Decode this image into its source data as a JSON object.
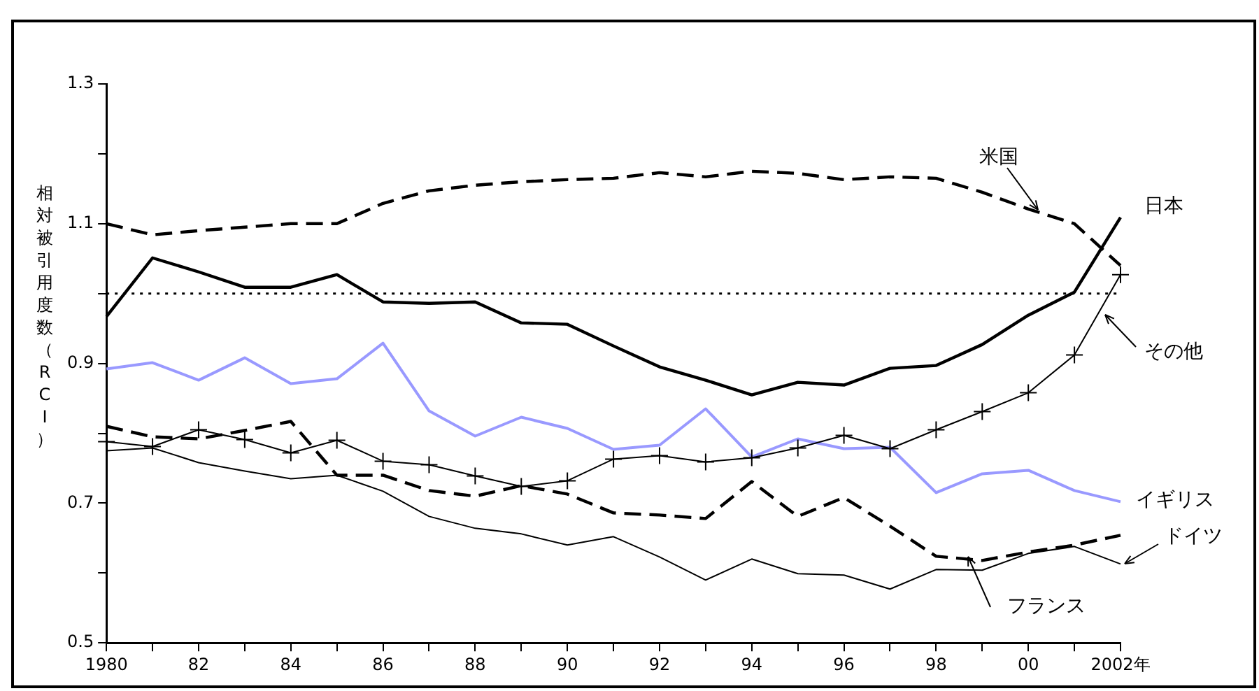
{
  "chart_data": {
    "type": "line",
    "ylabel": "相対被引用度数（RCI）",
    "x": [
      1980,
      1981,
      1982,
      1983,
      1984,
      1985,
      1986,
      1987,
      1988,
      1989,
      1990,
      1991,
      1992,
      1993,
      1994,
      1995,
      1996,
      1997,
      1998,
      1999,
      2000,
      2001,
      2002
    ],
    "series": [
      {
        "name": "米国",
        "color": "#000000",
        "line_style": "dashed",
        "marker": "none",
        "values": [
          1.1,
          1.084,
          1.09,
          1.095,
          1.1,
          1.1,
          1.129,
          1.147,
          1.155,
          1.16,
          1.163,
          1.165,
          1.173,
          1.167,
          1.175,
          1.172,
          1.163,
          1.167,
          1.165,
          1.145,
          1.121,
          1.1,
          1.04
        ]
      },
      {
        "name": "日本",
        "color": "#000000",
        "line_style": "solid",
        "marker": "none",
        "values": [
          0.967,
          1.051,
          1.031,
          1.009,
          1.009,
          1.027,
          0.988,
          0.986,
          0.988,
          0.958,
          0.956,
          0.925,
          0.895,
          0.876,
          0.855,
          0.873,
          0.869,
          0.893,
          0.897,
          0.927,
          0.969,
          1.002,
          1.109
        ]
      },
      {
        "name": "その他",
        "color": "#000000",
        "line_style": "solid",
        "marker": "cross",
        "values": [
          0.788,
          0.781,
          0.805,
          0.791,
          0.772,
          0.79,
          0.76,
          0.755,
          0.739,
          0.724,
          0.732,
          0.763,
          0.768,
          0.759,
          0.765,
          0.779,
          0.797,
          0.778,
          0.805,
          0.831,
          0.858,
          0.912,
          1.027
        ]
      },
      {
        "name": "イギリス",
        "color": "#9999ff",
        "line_style": "solid",
        "marker": "none",
        "values": [
          0.892,
          0.901,
          0.876,
          0.908,
          0.871,
          0.878,
          0.929,
          0.832,
          0.796,
          0.823,
          0.807,
          0.777,
          0.783,
          0.835,
          0.766,
          0.792,
          0.778,
          0.78,
          0.715,
          0.742,
          0.747,
          0.718,
          0.702
        ]
      },
      {
        "name": "ドイツ",
        "color": "#000000",
        "line_style": "solid",
        "marker": "none",
        "values": [
          0.775,
          0.779,
          0.758,
          0.746,
          0.735,
          0.74,
          0.717,
          0.681,
          0.664,
          0.656,
          0.64,
          0.652,
          0.623,
          0.59,
          0.62,
          0.599,
          0.597,
          0.577,
          0.605,
          0.604,
          0.628,
          0.638,
          0.613
        ]
      },
      {
        "name": "フランス",
        "color": "#000000",
        "line_style": "dashed",
        "marker": "none",
        "values": [
          0.81,
          0.795,
          0.792,
          0.804,
          0.817,
          0.74,
          0.74,
          0.718,
          0.71,
          0.725,
          0.713,
          0.686,
          0.683,
          0.678,
          0.731,
          0.681,
          0.708,
          0.667,
          0.624,
          0.618,
          0.63,
          0.64,
          0.654
        ]
      }
    ],
    "xlim": [
      1980,
      2002
    ],
    "xticks": [
      1980,
      {
        "value": 1981,
        "label": null
      },
      {
        "value": 1982,
        "label": "82"
      },
      {
        "value": 1983,
        "label": null
      },
      {
        "value": 1984,
        "label": "84"
      },
      {
        "value": 1985,
        "label": null
      },
      {
        "value": 1986,
        "label": "86"
      },
      {
        "value": 1987,
        "label": null
      },
      {
        "value": 1988,
        "label": "88"
      },
      {
        "value": 1989,
        "label": null
      },
      {
        "value": 1990,
        "label": "90"
      },
      {
        "value": 1991,
        "label": null
      },
      {
        "value": 1992,
        "label": "92"
      },
      {
        "value": 1993,
        "label": null
      },
      {
        "value": 1994,
        "label": "94"
      },
      {
        "value": 1995,
        "label": null
      },
      {
        "value": 1996,
        "label": "96"
      },
      {
        "value": 1997,
        "label": null
      },
      {
        "value": 1998,
        "label": "98"
      },
      {
        "value": 1999,
        "label": null
      },
      {
        "value": 2000,
        "label": "00"
      },
      {
        "value": 2001,
        "label": null
      },
      {
        "value": 2002,
        "label": "2002年"
      }
    ],
    "ylim": [
      0.5,
      1.3
    ],
    "yticks": [
      0.5,
      {
        "value": 0.6,
        "label": null
      },
      0.7,
      {
        "value": 0.8,
        "label": null
      },
      0.9,
      {
        "value": 1.0,
        "label": null
      },
      1.1,
      {
        "value": 1.2,
        "label": null
      },
      1.3
    ],
    "ref_lines": [
      {
        "axis": "y",
        "value": 1.0,
        "line_style": "dotted",
        "color": "#000000"
      }
    ],
    "grid": false,
    "legend": false
  }
}
